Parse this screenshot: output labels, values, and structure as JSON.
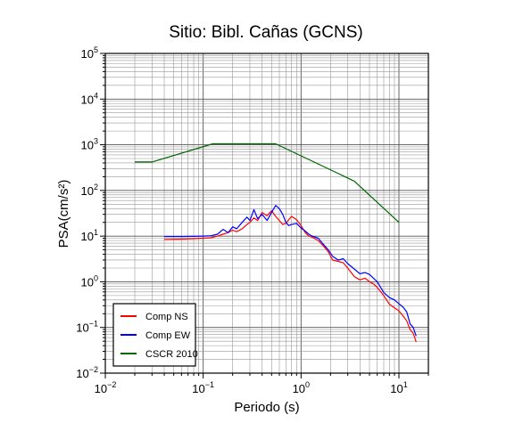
{
  "chart_data": {
    "type": "line",
    "title": "Sitio: Bibl. Cañas (GCNS)",
    "xlabel": "Periodo (s)",
    "ylabel": "PSA(cm/s²)",
    "x_scale": "log",
    "y_scale": "log",
    "xlim": [
      0.01,
      20
    ],
    "ylim": [
      0.01,
      100000
    ],
    "grid": true,
    "legend_position": "bottom-left",
    "x_ticks": [
      {
        "base": "10",
        "exp": "−2"
      },
      {
        "base": "10",
        "exp": "−1"
      },
      {
        "base": "10",
        "exp": "0"
      },
      {
        "base": "10",
        "exp": "1"
      }
    ],
    "y_ticks": [
      {
        "base": "10",
        "exp": "−2"
      },
      {
        "base": "10",
        "exp": "−1"
      },
      {
        "base": "10",
        "exp": "0"
      },
      {
        "base": "10",
        "exp": "1"
      },
      {
        "base": "10",
        "exp": "2"
      },
      {
        "base": "10",
        "exp": "3"
      },
      {
        "base": "10",
        "exp": "4"
      },
      {
        "base": "10",
        "exp": "5"
      }
    ],
    "series": [
      {
        "name": "Comp NS",
        "color": "#ff0000",
        "points": [
          [
            0.04,
            8.5
          ],
          [
            0.06,
            8.6
          ],
          [
            0.08,
            8.8
          ],
          [
            0.1,
            9.0
          ],
          [
            0.12,
            9.2
          ],
          [
            0.14,
            10.0
          ],
          [
            0.16,
            11.0
          ],
          [
            0.18,
            12.0
          ],
          [
            0.2,
            13.5
          ],
          [
            0.22,
            12.5
          ],
          [
            0.25,
            14.5
          ],
          [
            0.28,
            18.0
          ],
          [
            0.3,
            20.0
          ],
          [
            0.33,
            25.0
          ],
          [
            0.36,
            22.0
          ],
          [
            0.4,
            33.0
          ],
          [
            0.45,
            28.0
          ],
          [
            0.5,
            36.0
          ],
          [
            0.55,
            27.0
          ],
          [
            0.6,
            22.0
          ],
          [
            0.65,
            18.0
          ],
          [
            0.7,
            19.0
          ],
          [
            0.75,
            23.0
          ],
          [
            0.8,
            27.0
          ],
          [
            0.9,
            23.0
          ],
          [
            1.0,
            17.0
          ],
          [
            1.1,
            12.0
          ],
          [
            1.2,
            10.0
          ],
          [
            1.3,
            9.5
          ],
          [
            1.5,
            8.0
          ],
          [
            1.7,
            6.0
          ],
          [
            1.9,
            4.5
          ],
          [
            2.1,
            3.0
          ],
          [
            2.4,
            2.8
          ],
          [
            2.7,
            2.6
          ],
          [
            3.0,
            2.0
          ],
          [
            3.5,
            1.3
          ],
          [
            4.0,
            1.1
          ],
          [
            4.5,
            1.2
          ],
          [
            5.0,
            1.0
          ],
          [
            5.5,
            0.9
          ],
          [
            6.0,
            0.75
          ],
          [
            7.0,
            0.5
          ],
          [
            8.0,
            0.32
          ],
          [
            9.0,
            0.27
          ],
          [
            10.0,
            0.23
          ],
          [
            11.0,
            0.18
          ],
          [
            12.0,
            0.14
          ],
          [
            13.0,
            0.09
          ],
          [
            14.0,
            0.075
          ],
          [
            15.0,
            0.048
          ]
        ]
      },
      {
        "name": "Comp EW",
        "color": "#0000ff",
        "points": [
          [
            0.04,
            9.8
          ],
          [
            0.06,
            9.8
          ],
          [
            0.08,
            9.9
          ],
          [
            0.1,
            10.0
          ],
          [
            0.12,
            10.2
          ],
          [
            0.14,
            11.0
          ],
          [
            0.16,
            14.0
          ],
          [
            0.18,
            12.0
          ],
          [
            0.2,
            16.0
          ],
          [
            0.22,
            14.5
          ],
          [
            0.25,
            20.0
          ],
          [
            0.28,
            26.0
          ],
          [
            0.3,
            22.0
          ],
          [
            0.33,
            38.0
          ],
          [
            0.36,
            24.0
          ],
          [
            0.4,
            30.0
          ],
          [
            0.45,
            22.0
          ],
          [
            0.5,
            33.0
          ],
          [
            0.55,
            47.0
          ],
          [
            0.6,
            40.0
          ],
          [
            0.65,
            30.0
          ],
          [
            0.7,
            20.0
          ],
          [
            0.75,
            17.0
          ],
          [
            0.8,
            18.0
          ],
          [
            0.9,
            19.0
          ],
          [
            1.0,
            15.0
          ],
          [
            1.1,
            13.0
          ],
          [
            1.2,
            11.0
          ],
          [
            1.3,
            10.0
          ],
          [
            1.5,
            9.0
          ],
          [
            1.7,
            6.5
          ],
          [
            1.9,
            5.0
          ],
          [
            2.1,
            3.6
          ],
          [
            2.4,
            3.0
          ],
          [
            2.7,
            3.2
          ],
          [
            3.0,
            2.5
          ],
          [
            3.5,
            1.9
          ],
          [
            4.0,
            1.5
          ],
          [
            4.5,
            1.6
          ],
          [
            5.0,
            1.45
          ],
          [
            5.5,
            1.2
          ],
          [
            6.0,
            1.0
          ],
          [
            7.0,
            0.58
          ],
          [
            8.0,
            0.45
          ],
          [
            9.0,
            0.4
          ],
          [
            10.0,
            0.33
          ],
          [
            11.0,
            0.28
          ],
          [
            12.0,
            0.22
          ],
          [
            13.0,
            0.12
          ],
          [
            14.0,
            0.1
          ],
          [
            15.0,
            0.065
          ]
        ]
      },
      {
        "name": "CSCR 2010",
        "color": "#006400",
        "points": [
          [
            0.02,
            420
          ],
          [
            0.03,
            420
          ],
          [
            0.125,
            1050
          ],
          [
            0.55,
            1050
          ],
          [
            3.5,
            160
          ],
          [
            10.0,
            20
          ]
        ]
      }
    ]
  }
}
